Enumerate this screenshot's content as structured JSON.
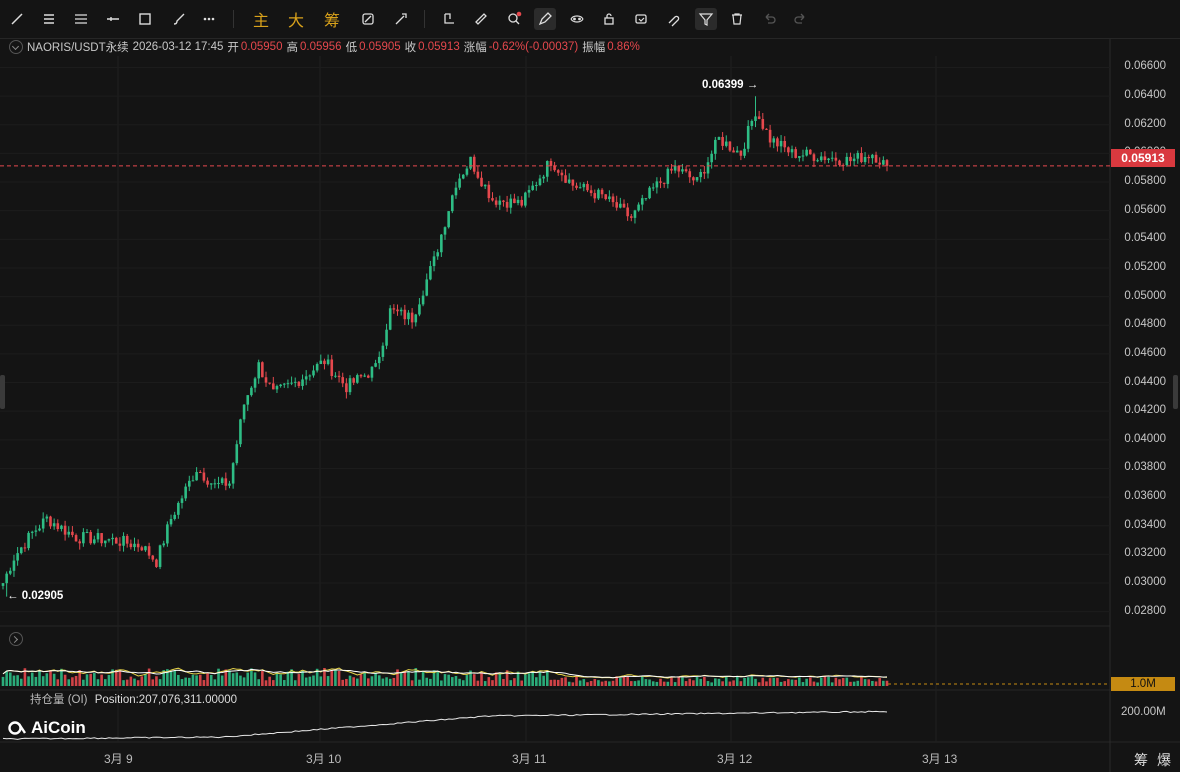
{
  "toolbar": {
    "tools": [
      "trend-line-icon",
      "horizontal-lines-icon",
      "parallel-lines-icon",
      "horizontal-ray-icon",
      "rectangle-icon",
      "brush-icon",
      "more-icon"
    ],
    "text_buttons": [
      "主",
      "大",
      "筹"
    ],
    "tools2": [
      "magnet-icon",
      "measure-icon",
      "camera-icon",
      "ruler-icon",
      "zoom-icon",
      "pencil-lock-icon",
      "eye-icon",
      "lock-icon",
      "layers-icon",
      "magnet-hook-icon",
      "filter-icon",
      "trash-icon",
      "undo-icon",
      "redo-icon"
    ]
  },
  "info": {
    "symbol": "NAORIS/USDT永续",
    "datetime": "2026-03-12 17:45",
    "open_label": "开",
    "open": "0.05950",
    "high_label": "高",
    "high": "0.05956",
    "low_label": "低",
    "low": "0.05905",
    "close_label": "收",
    "close": "0.05913",
    "change_label": "涨幅",
    "change": "-0.62%(-0.00037)",
    "amp_label": "振幅",
    "amp": "0.86%"
  },
  "price_axis": [
    "0.06600",
    "0.06400",
    "0.06200",
    "0.06000",
    "0.05800",
    "0.05600",
    "0.05400",
    "0.05200",
    "0.05000",
    "0.04800",
    "0.04600",
    "0.04400",
    "0.04200",
    "0.04000",
    "0.03800",
    "0.03600",
    "0.03400",
    "0.03200",
    "0.03000",
    "0.02800"
  ],
  "current_price": "0.05913",
  "annotations": {
    "max": "0.06399 →",
    "min": "← 0.02905"
  },
  "volume": {
    "axis_label": "1.0M"
  },
  "oi": {
    "label": "持仓量 (OI)",
    "position": "Position:207,076,311.00000",
    "axis_label": "200.00M"
  },
  "x_axis": [
    "3月 9",
    "3月 10",
    "3月 11",
    "3月 12",
    "3月 13"
  ],
  "logo": "AiCoin",
  "corner_buttons": [
    "筹",
    "爆"
  ],
  "colors": {
    "up": "#2ebd85",
    "down": "#e5484d",
    "accent": "#d9a21b",
    "price_line": "#e5484d"
  },
  "chart_data": {
    "type": "candlestick",
    "x_range": [
      "3月 9",
      "3月 12 17:45"
    ],
    "ylim": [
      0.027,
      0.0668
    ],
    "anchor_path": [
      {
        "t": 0,
        "p": 0.03
      },
      {
        "t": 3,
        "p": 0.0318
      },
      {
        "t": 8,
        "p": 0.0335
      },
      {
        "t": 12,
        "p": 0.0345
      },
      {
        "t": 20,
        "p": 0.0332
      },
      {
        "t": 30,
        "p": 0.033
      },
      {
        "t": 38,
        "p": 0.0326
      },
      {
        "t": 42,
        "p": 0.0315
      },
      {
        "t": 46,
        "p": 0.0345
      },
      {
        "t": 53,
        "p": 0.038
      },
      {
        "t": 58,
        "p": 0.0368
      },
      {
        "t": 62,
        "p": 0.037
      },
      {
        "t": 66,
        "p": 0.0425
      },
      {
        "t": 70,
        "p": 0.0452
      },
      {
        "t": 74,
        "p": 0.0432
      },
      {
        "t": 80,
        "p": 0.044
      },
      {
        "t": 88,
        "p": 0.0455
      },
      {
        "t": 94,
        "p": 0.0437
      },
      {
        "t": 102,
        "p": 0.045
      },
      {
        "t": 106,
        "p": 0.049
      },
      {
        "t": 112,
        "p": 0.0485
      },
      {
        "t": 118,
        "p": 0.0525
      },
      {
        "t": 124,
        "p": 0.058
      },
      {
        "t": 128,
        "p": 0.0595
      },
      {
        "t": 134,
        "p": 0.0568
      },
      {
        "t": 142,
        "p": 0.0565
      },
      {
        "t": 150,
        "p": 0.0595
      },
      {
        "t": 156,
        "p": 0.0578
      },
      {
        "t": 164,
        "p": 0.057
      },
      {
        "t": 172,
        "p": 0.0555
      },
      {
        "t": 178,
        "p": 0.0575
      },
      {
        "t": 184,
        "p": 0.059
      },
      {
        "t": 190,
        "p": 0.058
      },
      {
        "t": 196,
        "p": 0.061
      },
      {
        "t": 202,
        "p": 0.06
      },
      {
        "t": 206,
        "p": 0.063
      },
      {
        "t": 210,
        "p": 0.061
      },
      {
        "t": 216,
        "p": 0.06
      },
      {
        "t": 224,
        "p": 0.0598
      },
      {
        "t": 232,
        "p": 0.0595
      },
      {
        "t": 238,
        "p": 0.06
      },
      {
        "t": 242,
        "p": 0.0591
      }
    ],
    "high": 0.06399,
    "low": 0.02905,
    "last": 0.05913
  }
}
